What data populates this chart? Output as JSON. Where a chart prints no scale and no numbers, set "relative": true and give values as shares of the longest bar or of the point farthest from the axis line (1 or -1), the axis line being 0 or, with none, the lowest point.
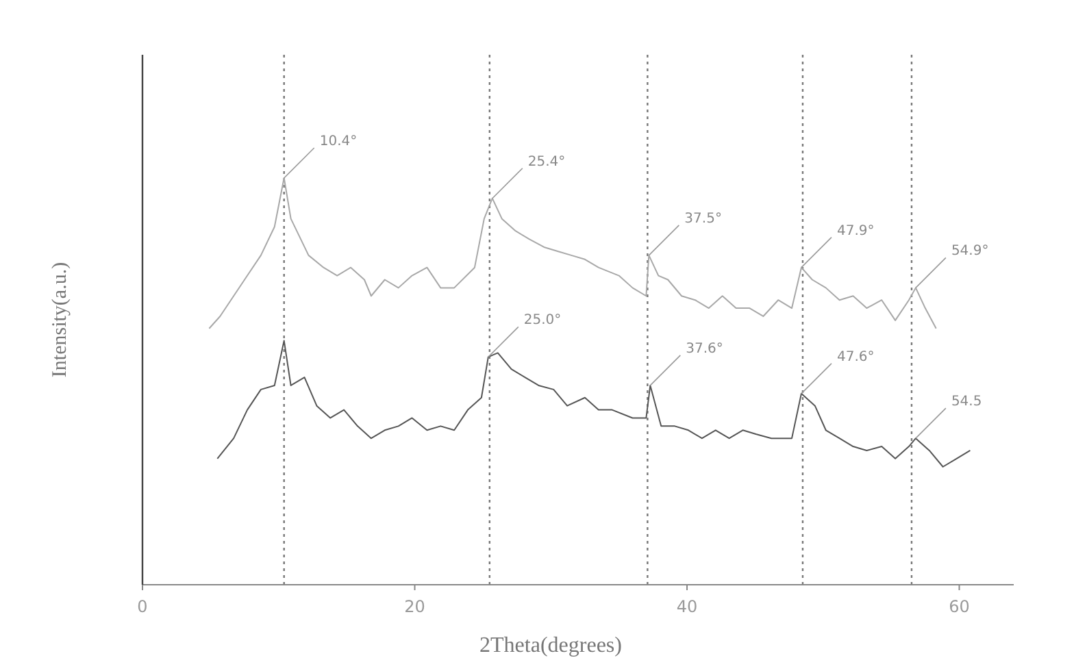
{
  "chart_data": {
    "type": "line",
    "xlabel": "2Theta(degrees)",
    "ylabel": "Intensity(a.u.)",
    "relative": true,
    "xlim": [
      0,
      64
    ],
    "xticks": [
      0,
      20,
      40,
      60
    ],
    "tick_labels": "x",
    "grid": false,
    "marker": "none",
    "line_style": "solid",
    "series": [
      {
        "color": "#a8a8a8",
        "x": [
          4.9,
          5.7,
          6.7,
          7.7,
          8.7,
          9.7,
          10.4,
          10.9,
          12.2,
          13.3,
          14.3,
          15.3,
          16.3,
          16.8,
          17.8,
          18.8,
          19.8,
          20.9,
          21.9,
          22.9,
          24.4,
          25.1,
          25.7,
          26.4,
          27.4,
          28.4,
          29.5,
          30.5,
          31.5,
          32.5,
          33.5,
          35.0,
          36.0,
          37.0,
          37.2,
          37.9,
          38.6,
          39.6,
          40.6,
          41.6,
          42.6,
          43.6,
          44.6,
          45.6,
          46.7,
          47.7,
          48.4,
          49.2,
          50.2,
          51.2,
          52.2,
          53.2,
          54.3,
          55.3,
          56.3,
          56.8,
          57.5,
          58.3
        ],
        "values": [
          0.63,
          0.66,
          0.71,
          0.76,
          0.81,
          0.88,
          1.0,
          0.9,
          0.81,
          0.78,
          0.76,
          0.78,
          0.75,
          0.71,
          0.75,
          0.73,
          0.76,
          0.78,
          0.73,
          0.73,
          0.78,
          0.9,
          0.95,
          0.9,
          0.87,
          0.85,
          0.83,
          0.82,
          0.81,
          0.8,
          0.78,
          0.76,
          0.73,
          0.71,
          0.81,
          0.76,
          0.75,
          0.71,
          0.7,
          0.68,
          0.71,
          0.68,
          0.68,
          0.66,
          0.7,
          0.68,
          0.78,
          0.75,
          0.73,
          0.7,
          0.71,
          0.68,
          0.7,
          0.65,
          0.7,
          0.73,
          0.68,
          0.63
        ]
      },
      {
        "color": "#555555",
        "x": [
          5.5,
          6.7,
          7.7,
          8.7,
          9.7,
          10.4,
          10.9,
          11.9,
          12.8,
          13.8,
          14.8,
          15.8,
          16.8,
          17.8,
          18.8,
          19.8,
          20.9,
          21.9,
          22.9,
          23.9,
          24.9,
          25.4,
          26.1,
          27.1,
          28.1,
          29.1,
          30.2,
          31.2,
          32.5,
          33.5,
          34.5,
          36.0,
          37.0,
          37.3,
          38.1,
          39.1,
          40.1,
          41.1,
          42.1,
          43.1,
          44.1,
          45.1,
          46.2,
          47.7,
          48.4,
          49.4,
          50.2,
          51.2,
          52.2,
          53.2,
          54.3,
          55.3,
          56.3,
          56.8,
          57.8,
          58.8,
          59.8,
          60.8
        ],
        "values": [
          0.31,
          0.36,
          0.43,
          0.48,
          0.49,
          0.6,
          0.49,
          0.51,
          0.44,
          0.41,
          0.43,
          0.39,
          0.36,
          0.38,
          0.39,
          0.41,
          0.38,
          0.39,
          0.38,
          0.43,
          0.46,
          0.56,
          0.57,
          0.53,
          0.51,
          0.49,
          0.48,
          0.44,
          0.46,
          0.43,
          0.43,
          0.41,
          0.41,
          0.49,
          0.39,
          0.39,
          0.38,
          0.36,
          0.38,
          0.36,
          0.38,
          0.37,
          0.36,
          0.36,
          0.47,
          0.44,
          0.38,
          0.36,
          0.34,
          0.33,
          0.34,
          0.31,
          0.34,
          0.36,
          0.33,
          0.29,
          0.31,
          0.33
        ]
      }
    ],
    "ref_lines": [
      {
        "axis": "x",
        "value": 10.4,
        "color": "#777777",
        "line_style": "dotted"
      },
      {
        "axis": "x",
        "value": 25.5,
        "color": "#777777",
        "line_style": "dotted"
      },
      {
        "axis": "x",
        "value": 37.1,
        "color": "#777777",
        "line_style": "dotted"
      },
      {
        "axis": "x",
        "value": 48.5,
        "color": "#777777",
        "line_style": "dotted"
      },
      {
        "axis": "x",
        "value": 56.5,
        "color": "#777777",
        "line_style": "dotted"
      }
    ],
    "annotations": [
      {
        "text": "10.4°",
        "x": 10.4,
        "y": 1.0
      },
      {
        "text": "25.4°",
        "x": 25.7,
        "y": 0.95
      },
      {
        "text": "37.5°",
        "x": 37.2,
        "y": 0.81
      },
      {
        "text": "47.9°",
        "x": 48.4,
        "y": 0.78
      },
      {
        "text": "54.9°",
        "x": 56.8,
        "y": 0.73
      },
      {
        "text": "25.0°",
        "x": 25.4,
        "y": 0.56
      },
      {
        "text": "37.6°",
        "x": 37.3,
        "y": 0.49
      },
      {
        "text": "47.6°",
        "x": 48.4,
        "y": 0.47
      },
      {
        "text": "54.5",
        "x": 56.8,
        "y": 0.36
      }
    ]
  }
}
